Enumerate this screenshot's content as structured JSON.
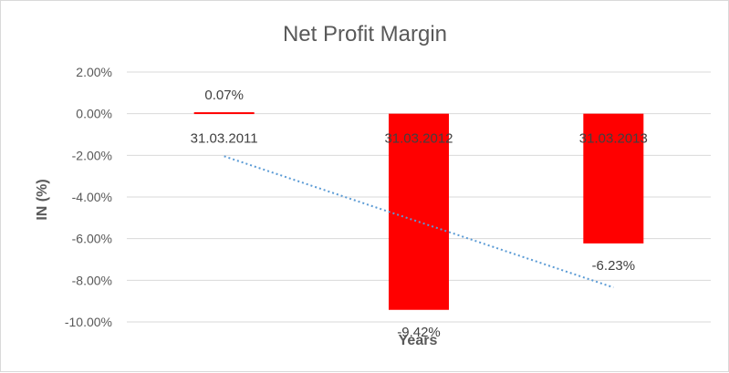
{
  "chart_data": {
    "type": "bar",
    "title": "Net Profit Margin",
    "xlabel": "Years",
    "ylabel": "IN (%)",
    "categories": [
      "31.03.2011",
      "31.03.2012",
      "31.03.2013"
    ],
    "series": [
      {
        "values": [
          0.07,
          -9.42,
          -6.23
        ],
        "color": "#ff0000"
      }
    ],
    "data_labels": [
      "0.07%",
      "-9.42%",
      "-6.23%"
    ],
    "y_ticks": [
      "2.00%",
      "0.00%",
      "-2.00%",
      "-4.00%",
      "-6.00%",
      "-8.00%",
      "-10.00%"
    ],
    "ylim": [
      -10,
      2
    ],
    "grid": true,
    "legend": "none",
    "trendline": {
      "type": "linear",
      "style": "dotted",
      "color": "#5b9bd5"
    },
    "gridline_color": "#d9d9d9"
  }
}
